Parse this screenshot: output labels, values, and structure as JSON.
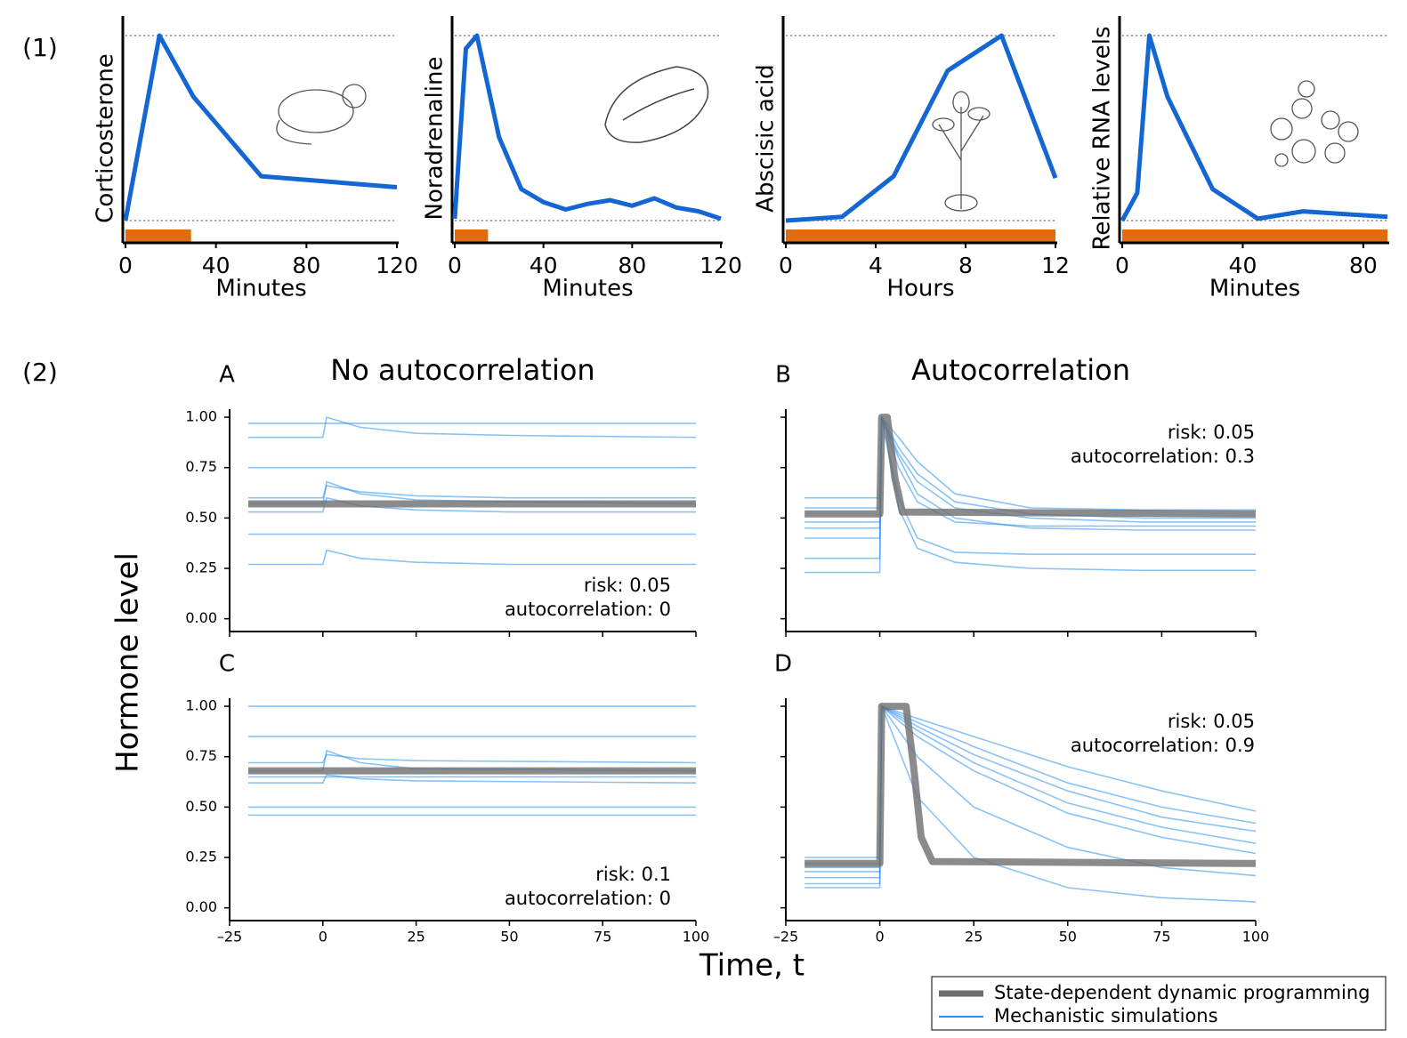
{
  "section_labels": [
    "(1)",
    "(2)"
  ],
  "ylabel": "Hormone level",
  "xlabel": "Time, t",
  "legend": [
    {
      "name": "State-dependent dynamic programming",
      "color": "#6e6e6e"
    },
    {
      "name": "Mechanistic simulations",
      "color": "#2a8ff0"
    }
  ],
  "chart_data": [
    {
      "type": "line",
      "ylabel": "Corticosterone",
      "xlabel": "Minutes",
      "color": "#1466d2",
      "x": [
        0,
        15,
        30,
        60,
        120
      ],
      "values": [
        0,
        1,
        0.67,
        0.24,
        0.18
      ],
      "xlim": [
        0,
        120
      ],
      "xticks": [
        0,
        40,
        80,
        120
      ],
      "ylim": [
        -0.106,
        1.106
      ],
      "reflines": [
        0,
        1
      ],
      "stressor": [
        0,
        29
      ],
      "stressor_color": "#e06c10"
    },
    {
      "type": "line",
      "ylabel": "Noradrenaline",
      "xlabel": "Minutes",
      "color": "#1466d2",
      "x": [
        0,
        5,
        10,
        20,
        30,
        40,
        50,
        60,
        70,
        80,
        90,
        100,
        110,
        120
      ],
      "values": [
        0.01,
        0.93,
        1,
        0.45,
        0.17,
        0.1,
        0.06,
        0.09,
        0.11,
        0.08,
        0.12,
        0.07,
        0.05,
        0.01
      ],
      "xlim": [
        0,
        120
      ],
      "xticks": [
        0,
        40,
        80,
        120
      ],
      "ylim": [
        -0.106,
        1.106
      ],
      "reflines": [
        0,
        1
      ],
      "stressor": [
        0,
        15
      ],
      "stressor_color": "#e06c10"
    },
    {
      "type": "line",
      "ylabel": "Abscisic acid",
      "xlabel": "Hours",
      "color": "#1466d2",
      "x": [
        0,
        2.5,
        4.8,
        7.2,
        9.6,
        12
      ],
      "values": [
        0.0,
        0.02,
        0.24,
        0.81,
        1,
        0.23
      ],
      "xlim": [
        0,
        12
      ],
      "xticks": [
        0,
        4,
        8,
        12
      ],
      "ylim": [
        -0.106,
        1.106
      ],
      "reflines": [
        0,
        1
      ],
      "stressor": [
        0,
        12
      ],
      "stressor_color": "#e06c10"
    },
    {
      "type": "line",
      "ylabel": "Relative RNA levels",
      "xlabel": "Minutes",
      "color": "#1466d2",
      "x": [
        0,
        5,
        9,
        15,
        30,
        45,
        60,
        88
      ],
      "values": [
        0.0,
        0.15,
        1,
        0.67,
        0.17,
        0.01,
        0.05,
        0.02
      ],
      "xlim": [
        0,
        88
      ],
      "xticks": [
        0,
        40,
        80
      ],
      "ylim": [
        -0.106,
        1.106
      ],
      "reflines": [
        0,
        1
      ],
      "stressor": [
        0,
        88
      ],
      "stressor_color": "#e06c10"
    },
    {
      "type": "simulation",
      "panel": "A",
      "title": "No autocorrelation",
      "annotations": [
        "risk: 0.05",
        "autocorrelation: 0"
      ],
      "xlim": [
        -25,
        100
      ],
      "xticks": [
        -25,
        0,
        25,
        50,
        75,
        100
      ],
      "xtick_labels": false,
      "ylim": [
        -0.05,
        1.04
      ],
      "yticks": [
        {
          "value": 0,
          "label": "0.00"
        },
        {
          "value": 0.25,
          "label": "0.25"
        },
        {
          "value": 0.5,
          "label": "0.50"
        },
        {
          "value": 0.75,
          "label": "0.75"
        },
        {
          "value": 1,
          "label": "1.00"
        }
      ],
      "ytick_labels": true,
      "dp_x": [
        -20,
        100
      ],
      "dp_values": [
        0.57,
        0.57
      ],
      "sim_x": [
        -20,
        0,
        1,
        10,
        25,
        50,
        100
      ],
      "sim_series": [
        [
          0.9,
          0.9,
          1.0,
          0.95,
          0.92,
          0.91,
          0.9
        ],
        [
          0.97,
          0.97,
          0.97,
          0.97,
          0.97,
          0.97,
          0.97
        ],
        [
          0.75,
          0.75,
          0.75,
          0.75,
          0.75,
          0.75,
          0.75
        ],
        [
          0.57,
          0.57,
          0.68,
          0.62,
          0.59,
          0.58,
          0.57
        ],
        [
          0.6,
          0.6,
          0.66,
          0.63,
          0.61,
          0.6,
          0.6
        ],
        [
          0.53,
          0.53,
          0.6,
          0.56,
          0.54,
          0.53,
          0.53
        ],
        [
          0.42,
          0.42,
          0.42,
          0.42,
          0.42,
          0.42,
          0.42
        ],
        [
          0.27,
          0.27,
          0.34,
          0.3,
          0.28,
          0.27,
          0.27
        ]
      ]
    },
    {
      "type": "simulation",
      "panel": "B",
      "title": "Autocorrelation",
      "annotations": [
        "risk: 0.05",
        "autocorrelation: 0.3"
      ],
      "xlim": [
        -25,
        100
      ],
      "xticks": [
        -25,
        0,
        25,
        50,
        75,
        100
      ],
      "xtick_labels": false,
      "ylim": [
        -0.05,
        1.04
      ],
      "yticks": [
        0,
        0.25,
        0.5,
        0.75,
        1
      ],
      "ytick_labels": false,
      "dp_x": [
        -20,
        0,
        0.5,
        2,
        4,
        6,
        100
      ],
      "dp_values": [
        0.52,
        0.52,
        1,
        1,
        0.7,
        0.53,
        0.52
      ],
      "sim_x": [
        -20,
        0,
        0.5,
        5,
        10,
        20,
        40,
        70,
        100
      ],
      "sim_series": [
        [
          0.4,
          0.4,
          1,
          0.8,
          0.62,
          0.5,
          0.45,
          0.44,
          0.44
        ],
        [
          0.55,
          0.55,
          1,
          0.82,
          0.68,
          0.55,
          0.5,
          0.48,
          0.48
        ],
        [
          0.48,
          0.48,
          1,
          0.75,
          0.58,
          0.48,
          0.46,
          0.46,
          0.46
        ],
        [
          0.6,
          0.6,
          1,
          0.9,
          0.78,
          0.62,
          0.55,
          0.54,
          0.54
        ],
        [
          0.3,
          0.3,
          1,
          0.6,
          0.4,
          0.33,
          0.32,
          0.32,
          0.32
        ],
        [
          0.45,
          0.45,
          1,
          0.85,
          0.72,
          0.58,
          0.52,
          0.5,
          0.5
        ],
        [
          0.23,
          0.23,
          1,
          0.55,
          0.35,
          0.28,
          0.25,
          0.24,
          0.24
        ]
      ]
    },
    {
      "type": "simulation",
      "panel": "C",
      "annotations": [
        "risk: 0.1",
        "autocorrelation: 0"
      ],
      "xlim": [
        -25,
        100
      ],
      "xticks": [
        {
          "value": -25,
          "label": "–25"
        },
        0,
        25,
        50,
        75,
        100
      ],
      "xtick_labels": true,
      "ylim": [
        -0.05,
        1.04
      ],
      "yticks": [
        {
          "value": 0,
          "label": "0.00"
        },
        {
          "value": 0.25,
          "label": "0.25"
        },
        {
          "value": 0.5,
          "label": "0.50"
        },
        {
          "value": 0.75,
          "label": "0.75"
        },
        {
          "value": 1,
          "label": "1.00"
        }
      ],
      "ytick_labels": true,
      "dp_x": [
        -20,
        100
      ],
      "dp_values": [
        0.68,
        0.68
      ],
      "sim_x": [
        -20,
        0,
        1,
        10,
        25,
        100
      ],
      "sim_series": [
        [
          0.68,
          0.68,
          0.78,
          0.72,
          0.69,
          0.68
        ],
        [
          0.72,
          0.72,
          0.76,
          0.74,
          0.73,
          0.72
        ],
        [
          0.65,
          0.65,
          0.65,
          0.65,
          0.65,
          0.65
        ],
        [
          0.85,
          0.85,
          0.85,
          0.85,
          0.85,
          0.85
        ],
        [
          1,
          1,
          1,
          1,
          1,
          1
        ],
        [
          0.5,
          0.5,
          0.5,
          0.5,
          0.5,
          0.5
        ],
        [
          0.46,
          0.46,
          0.46,
          0.46,
          0.46,
          0.46
        ],
        [
          0.62,
          0.62,
          0.66,
          0.64,
          0.63,
          0.62
        ]
      ]
    },
    {
      "type": "simulation",
      "panel": "D",
      "annotations": [
        "risk: 0.05",
        "autocorrelation: 0.9"
      ],
      "xlim": [
        -25,
        100
      ],
      "xticks": [
        {
          "value": -25,
          "label": "–25"
        },
        0,
        25,
        50,
        75,
        100
      ],
      "xtick_labels": true,
      "ylim": [
        -0.05,
        1.04
      ],
      "yticks": [
        0,
        0.25,
        0.5,
        0.75,
        1
      ],
      "ytick_labels": false,
      "dp_x": [
        -20,
        0,
        0.5,
        7,
        9,
        11,
        14,
        100
      ],
      "dp_values": [
        0.22,
        0.22,
        1,
        1,
        0.7,
        0.35,
        0.23,
        0.22
      ],
      "sim_x": [
        -20,
        0,
        0.5,
        10,
        25,
        50,
        75,
        100
      ],
      "sim_series": [
        [
          0.2,
          0.2,
          1,
          0.92,
          0.8,
          0.62,
          0.5,
          0.42
        ],
        [
          0.15,
          0.15,
          1,
          0.88,
          0.72,
          0.52,
          0.4,
          0.32
        ],
        [
          0.25,
          0.25,
          1,
          0.94,
          0.85,
          0.7,
          0.58,
          0.48
        ],
        [
          0.1,
          0.1,
          1,
          0.75,
          0.5,
          0.3,
          0.2,
          0.16
        ],
        [
          0.18,
          0.18,
          1,
          0.55,
          0.25,
          0.1,
          0.05,
          0.03
        ],
        [
          0.22,
          0.22,
          1,
          0.9,
          0.76,
          0.58,
          0.45,
          0.38
        ],
        [
          0.12,
          0.12,
          1,
          0.85,
          0.68,
          0.47,
          0.35,
          0.27
        ]
      ]
    }
  ]
}
